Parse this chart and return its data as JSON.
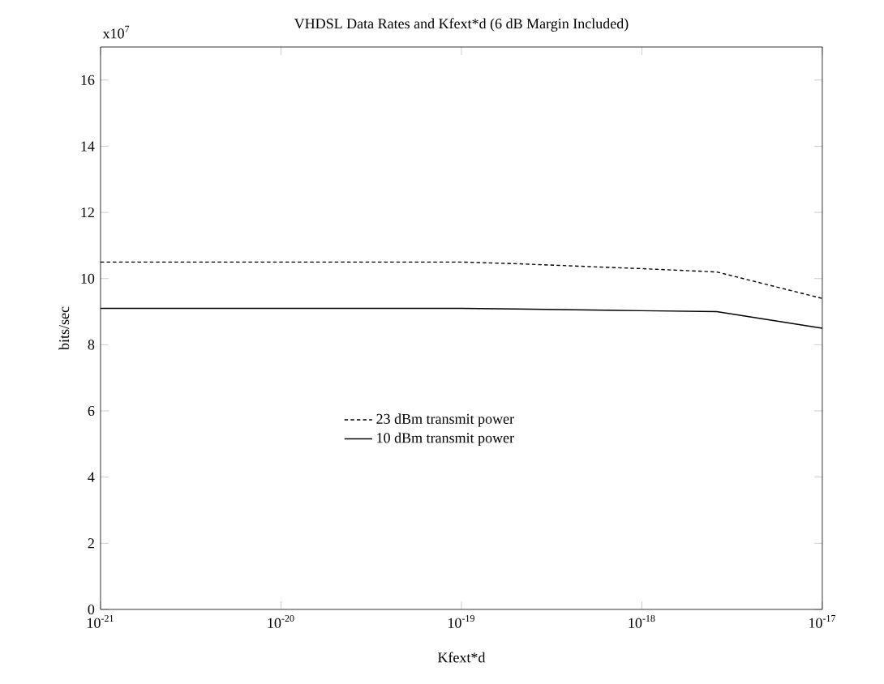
{
  "chart_data": {
    "type": "line",
    "title": "VHDSL Data Rates and Kfext*d (6 dB Margin Included)",
    "xlabel": "Kfext*d",
    "ylabel": "bits/sec",
    "annotations": [
      "x10$^{7}$"
    ],
    "log": "x",
    "legend": "center",
    "grid": false,
    "marker": "none",
    "xlim": [
      1e-21,
      1e-17
    ],
    "ylim": [
      0,
      17
    ],
    "xticks": [
      {
        "value": 1e-21,
        "label": "10$^{-21}$"
      },
      {
        "value": 1e-20,
        "label": "10$^{-20}$"
      },
      {
        "value": 1e-19,
        "label": "10$^{-19}$"
      },
      {
        "value": 1e-18,
        "label": "10$^{-18}$"
      },
      {
        "value": 1e-17,
        "label": "10$^{-17}$"
      }
    ],
    "yticks": [
      0,
      2,
      4,
      6,
      8,
      10,
      12,
      14,
      16
    ],
    "x": [
      1e-21,
      1e-20,
      1e-19,
      2e-19,
      1e-18,
      2.6e-18,
      1e-17
    ],
    "series": [
      {
        "name": "23 dBm transmit power",
        "color": "#000000",
        "line_style": "dashed",
        "values": [
          10.5,
          10.5,
          10.5,
          10.45,
          10.3,
          10.2,
          9.4
        ]
      },
      {
        "name": "10 dBm transmit power",
        "color": "#000000",
        "line_style": "solid",
        "values": [
          9.1,
          9.1,
          9.1,
          9.08,
          9.03,
          9.0,
          8.5
        ]
      }
    ]
  }
}
